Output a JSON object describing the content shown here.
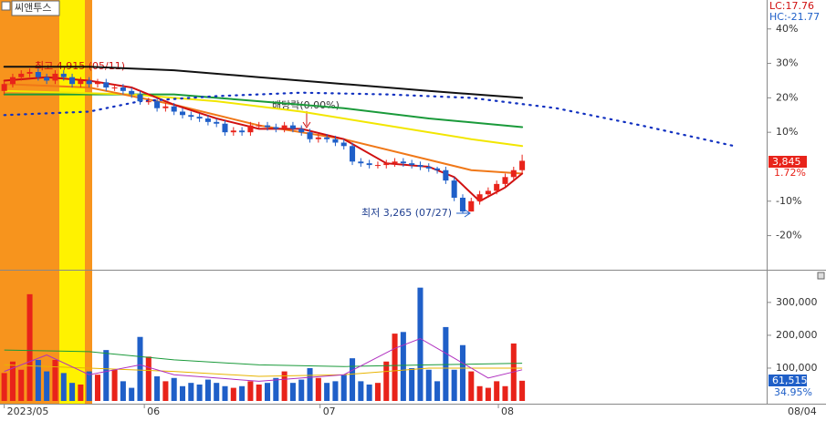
{
  "chart_data": {
    "type": "candlestick",
    "title": "씨앤투스",
    "lc_label": "LC:17.76",
    "hc_label": "HC:-21.77",
    "high_annotation": "최고 4,915 (05/11)",
    "low_annotation": "최저 3,265 (07/27)",
    "dividend_annotation": "배당락(0.00%)",
    "last_price_label": "3,845",
    "last_change_label": "1.72%",
    "last_volume_label": "61,515",
    "volume_ratio_label": "34.95%",
    "end_date_label": "08/04",
    "xlim": [
      -0.5,
      89.8
    ],
    "xticks": [
      {
        "value": 0,
        "label": "2023/05"
      },
      {
        "value": 16.5,
        "label": "06"
      },
      {
        "value": 37.2,
        "label": "07"
      },
      {
        "value": 58.2,
        "label": "08"
      }
    ],
    "ylim": [
      -29.9,
      48.4
    ],
    "yticks": [
      {
        "value": 40,
        "label": "40%"
      },
      {
        "value": 30,
        "label": "30%"
      },
      {
        "value": 20,
        "label": "20%"
      },
      {
        "value": 10,
        "label": "10%"
      },
      {
        "value": -10,
        "label": "-10%"
      },
      {
        "value": -20,
        "label": "-20%"
      }
    ],
    "up_color": "#e8231a",
    "down_color": "#1f5fc8",
    "open": [
      22,
      24,
      26,
      27,
      27.5,
      26,
      25,
      27,
      26,
      24,
      25,
      24,
      24.5,
      23,
      23,
      22,
      21,
      19,
      19,
      17,
      17.5,
      16,
      15,
      14.5,
      14,
      13,
      12.5,
      10,
      10.5,
      10,
      12,
      12,
      11.5,
      11,
      12,
      11,
      10,
      8,
      8.5,
      8,
      7,
      6,
      1.5,
      1,
      0.5,
      0.5,
      1,
      1.5,
      1,
      0.5,
      0,
      -0.5,
      -1,
      -4,
      -9,
      -13,
      -10,
      -8,
      -7,
      -5,
      -3,
      -1
    ],
    "high": [
      25,
      27,
      28,
      28.5,
      28.5,
      27,
      28,
      28,
      27,
      26,
      26,
      25.5,
      25.5,
      24,
      24,
      23,
      22,
      20,
      20,
      18.5,
      18.5,
      17,
      16,
      15.5,
      15,
      14,
      13.5,
      11.5,
      11.5,
      13,
      13,
      13,
      12.5,
      13,
      13,
      12,
      11,
      9.5,
      9.5,
      9,
      8,
      7,
      2.5,
      2,
      1.5,
      2,
      2.5,
      2.5,
      2,
      1.5,
      1,
      0,
      0,
      -3,
      -8,
      -9,
      -7,
      -6,
      -4,
      -2,
      0,
      3.5
    ],
    "low": [
      21,
      23,
      25,
      26,
      25,
      24,
      24,
      25,
      23,
      23,
      23,
      23,
      22,
      22,
      21,
      20,
      18,
      18,
      16,
      16,
      15,
      14,
      13.5,
      13,
      12,
      11.5,
      9,
      9,
      9,
      9,
      11,
      10.5,
      10,
      10,
      10,
      9,
      7,
      7,
      7,
      6,
      5,
      0.5,
      0,
      -0.5,
      -0.5,
      -0.5,
      0,
      0,
      -0.5,
      -1,
      -1.5,
      -2,
      -5,
      -10,
      -13.6,
      -13,
      -11,
      -9,
      -8,
      -6,
      -4,
      -2
    ],
    "close": [
      24,
      26,
      27,
      27.5,
      26,
      25,
      27,
      26,
      24,
      25,
      24,
      24.5,
      23,
      23,
      22,
      21,
      19,
      19,
      17,
      17.5,
      16,
      15,
      14.5,
      14,
      13,
      12.5,
      10,
      10.5,
      10,
      12,
      12,
      11.5,
      11,
      12,
      11,
      10,
      8,
      8.5,
      8,
      7,
      6,
      1.5,
      1,
      0.5,
      0.5,
      1,
      1.5,
      1,
      0.5,
      0,
      -0.5,
      -1,
      -4,
      -9,
      -13,
      -10,
      -8,
      -7,
      -5,
      -3,
      -1,
      1.72
    ],
    "lines": [
      {
        "color": "#111111",
        "style": "solid",
        "x": [
          0,
          10,
          20,
          30,
          40,
          50,
          61
        ],
        "values": [
          29,
          29,
          28,
          26,
          24,
          22,
          20
        ]
      },
      {
        "color": "#1a9a3a",
        "style": "solid",
        "x": [
          0,
          20,
          30,
          40,
          50,
          61
        ],
        "values": [
          21,
          21,
          19,
          17,
          14,
          11.5
        ]
      },
      {
        "color": "#f2e600",
        "style": "solid",
        "x": [
          0,
          15,
          25,
          35,
          45,
          55,
          61
        ],
        "values": [
          22,
          21,
          19,
          16,
          12,
          8,
          6
        ]
      },
      {
        "color": "#f07818",
        "style": "solid",
        "x": [
          0,
          10,
          20,
          30,
          40,
          50,
          55,
          61
        ],
        "values": [
          24,
          23,
          18,
          12,
          8,
          2,
          -1,
          -2
        ]
      },
      {
        "color": "#d01010",
        "style": "solid",
        "x": [
          0,
          5,
          10,
          15,
          20,
          25,
          30,
          35,
          40,
          45,
          50,
          53,
          56,
          59,
          61
        ],
        "values": [
          25,
          26,
          25,
          23,
          18,
          14,
          11,
          11,
          8,
          1,
          0,
          -3,
          -10,
          -6,
          -2
        ]
      },
      {
        "color": "#1030c0",
        "style": "dotted",
        "x": [
          0,
          10,
          16,
          25,
          35,
          45,
          55,
          65,
          75,
          86
        ],
        "values": [
          15,
          16,
          19,
          20.5,
          21.5,
          21,
          20,
          17,
          12,
          6
        ]
      }
    ],
    "volume": {
      "ylim": [
        0,
        394000
      ],
      "yticks": [
        {
          "value": 300000,
          "label": "300,000"
        },
        {
          "value": 200000,
          "label": "200,000"
        },
        {
          "value": 100000,
          "label": "100,000"
        }
      ],
      "values": [
        85000,
        120000,
        95000,
        325000,
        125000,
        90000,
        125000,
        85000,
        55000,
        50000,
        90000,
        80000,
        155000,
        95000,
        60000,
        40000,
        195000,
        135000,
        75000,
        60000,
        70000,
        45000,
        55000,
        50000,
        65000,
        55000,
        45000,
        40000,
        45000,
        60000,
        50000,
        55000,
        70000,
        90000,
        55000,
        65000,
        100000,
        70000,
        55000,
        60000,
        80000,
        130000,
        60000,
        50000,
        55000,
        120000,
        205000,
        210000,
        100000,
        345000,
        95000,
        60000,
        225000,
        95000,
        170000,
        90000,
        45000,
        40000,
        60000,
        45000,
        175000,
        61515
      ],
      "lines": [
        {
          "color": "#1a9a3a",
          "x": [
            0,
            10,
            20,
            30,
            40,
            50,
            61
          ],
          "values": [
            155000,
            150000,
            125000,
            110000,
            105000,
            110000,
            115000
          ]
        },
        {
          "color": "#e8b400",
          "x": [
            0,
            10,
            20,
            30,
            40,
            50,
            61
          ],
          "values": [
            110000,
            100000,
            90000,
            75000,
            80000,
            100000,
            100000
          ]
        },
        {
          "color": "#b030c0",
          "x": [
            0,
            5,
            10,
            16,
            20,
            30,
            40,
            46,
            49,
            53,
            57,
            61
          ],
          "values": [
            90000,
            140000,
            80000,
            110000,
            80000,
            60000,
            80000,
            160000,
            190000,
            130000,
            70000,
            95000
          ]
        }
      ]
    }
  }
}
